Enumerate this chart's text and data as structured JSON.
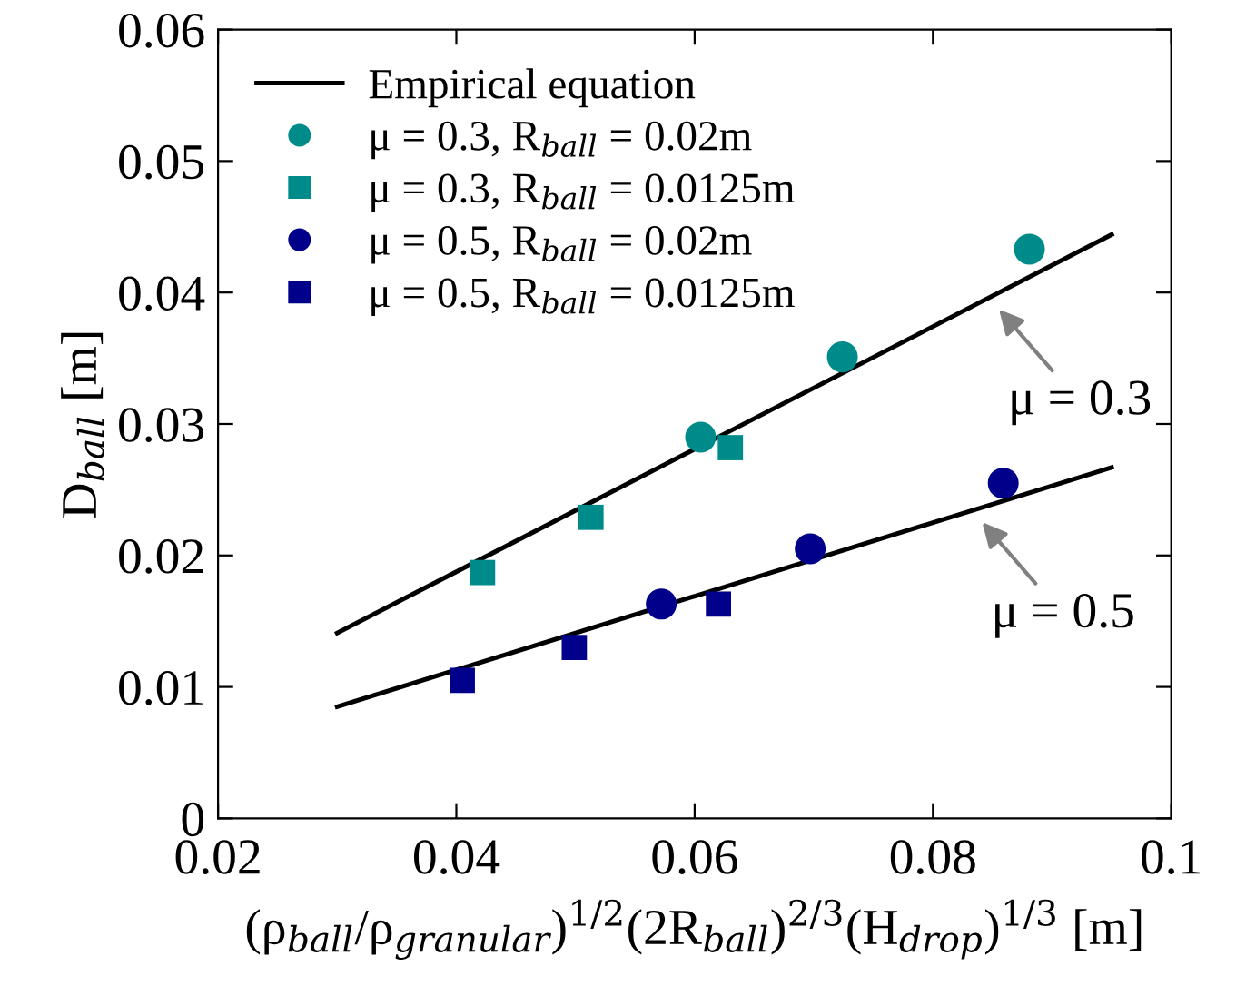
{
  "chart_data": {
    "type": "scatter",
    "xlabel": "(ρ$_{ball}$/ρ$_{granular}$)$^{1/2}$(2R$_{ball}$)$^{2/3}$(H$_{drop}$)$^{1/3}$ [m]",
    "ylabel": "D$_{ball}$ [m]",
    "xlim": [
      0.02,
      0.1
    ],
    "xticks": [
      0.02,
      0.04,
      0.06,
      0.08,
      0.1
    ],
    "ylim": [
      0,
      0.06
    ],
    "yticks": [
      0,
      0.01,
      0.02,
      0.03,
      0.04,
      0.05,
      0.06
    ],
    "grid": false,
    "legend": "top left",
    "series": [
      {
        "type": "line",
        "name": "Empirical equation",
        "color": "#000000",
        "line_style": "solid",
        "marker": "none",
        "x": [
          0.03,
          0.095
        ],
        "values": [
          0.0141,
          0.0444
        ]
      },
      {
        "type": "line",
        "color": "#000000",
        "line_style": "solid",
        "marker": "none",
        "x": [
          0.03,
          0.095
        ],
        "values": [
          0.0085,
          0.0267
        ]
      },
      {
        "name": "μ = 0.3, R$_{ball}$ = 0.02m",
        "color": "#008b8b",
        "marker": "circle",
        "x": [
          0.0605,
          0.0724,
          0.0881
        ],
        "values": [
          0.029,
          0.0351,
          0.0433
        ]
      },
      {
        "name": "μ = 0.3, R$_{ball}$ = 0.0125m",
        "color": "#008b8b",
        "marker": "square",
        "x": [
          0.0422,
          0.0513,
          0.063
        ],
        "values": [
          0.0187,
          0.0229,
          0.0282
        ]
      },
      {
        "name": "μ = 0.5, R$_{ball}$ = 0.02m",
        "color": "#00008b",
        "marker": "circle",
        "x": [
          0.0572,
          0.0697,
          0.0859
        ],
        "values": [
          0.0163,
          0.0205,
          0.0255
        ]
      },
      {
        "name": "μ = 0.5, R$_{ball}$ = 0.0125m",
        "color": "#00008b",
        "marker": "square",
        "x": [
          0.0405,
          0.0499,
          0.062
        ],
        "values": [
          0.0105,
          0.013,
          0.0163
        ]
      }
    ],
    "annotations": [
      {
        "text": "μ = 0.3",
        "x": 0.0847,
        "y": 0.0396
      },
      {
        "text": "μ = 0.5",
        "x": 0.0833,
        "y": 0.0234
      }
    ]
  }
}
